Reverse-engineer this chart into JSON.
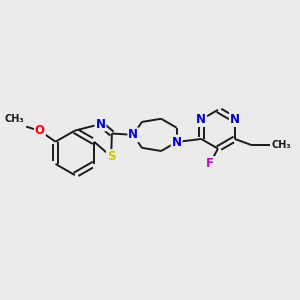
{
  "bg_color": "#ebebeb",
  "bond_color": "#1a1a1a",
  "atom_colors": {
    "N": "#0000cc",
    "O": "#ff0000",
    "S": "#cccc00",
    "F": "#cc00cc",
    "C": "#1a1a1a"
  },
  "figsize": [
    3.0,
    3.0
  ],
  "dpi": 100,
  "lw": 1.4
}
